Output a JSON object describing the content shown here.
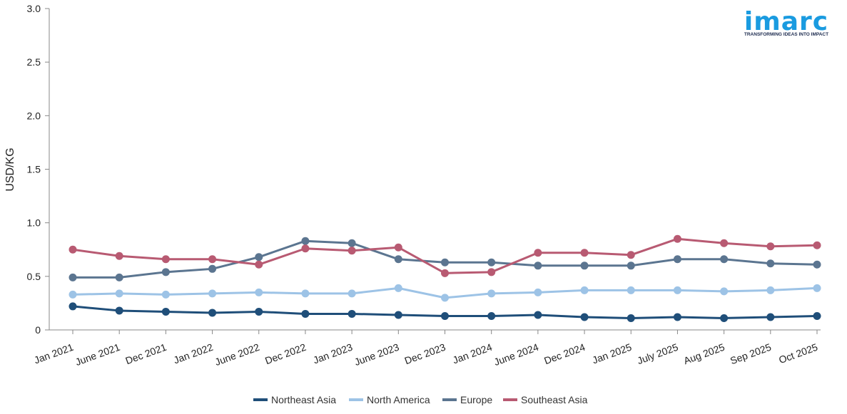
{
  "brand": {
    "name": "imarc",
    "tagline": "TRANSFORMING IDEAS INTO IMPACT",
    "color": "#1a9be0",
    "tagline_color": "#1d2b4f"
  },
  "chart_data": {
    "type": "line",
    "title": "",
    "xlabel": "",
    "ylabel": "USD/KG",
    "ylim": [
      0,
      3.0
    ],
    "yticks": [
      0,
      0.5,
      1.0,
      1.5,
      2.0,
      2.5,
      3.0
    ],
    "ytick_labels": [
      "0",
      "0.5",
      "1.0",
      "1.5",
      "2.0",
      "2.5",
      "3.0"
    ],
    "grid": false,
    "legend": "bottom-center",
    "categories": [
      "Jan 2021",
      "June 2021",
      "Dec 2021",
      "Jan 2022",
      "June 2022",
      "Dec 2022",
      "Jan 2023",
      "June 2023",
      "Dec 2023",
      "Jan 2024",
      "June 2024",
      "Dec 2024",
      "Jan 2025",
      "July 2025",
      "Aug 2025",
      "Sep 2025",
      "Oct 2025"
    ],
    "series": [
      {
        "name": "Northeast Asia",
        "color": "#1f4e79",
        "values": [
          0.22,
          0.18,
          0.17,
          0.16,
          0.17,
          0.15,
          0.15,
          0.14,
          0.13,
          0.13,
          0.14,
          0.12,
          0.11,
          0.12,
          0.11,
          0.12,
          0.13
        ]
      },
      {
        "name": "North America",
        "color": "#9dc3e6",
        "values": [
          0.33,
          0.34,
          0.33,
          0.34,
          0.35,
          0.34,
          0.34,
          0.39,
          0.3,
          0.34,
          0.35,
          0.37,
          0.37,
          0.37,
          0.36,
          0.37,
          0.39
        ]
      },
      {
        "name": "Europe",
        "color": "#5b7590",
        "values": [
          0.49,
          0.49,
          0.54,
          0.57,
          0.68,
          0.83,
          0.81,
          0.66,
          0.63,
          0.63,
          0.6,
          0.6,
          0.6,
          0.66,
          0.66,
          0.62,
          0.61
        ]
      },
      {
        "name": "Southeast Asia",
        "color": "#b85a72",
        "values": [
          0.75,
          0.69,
          0.66,
          0.66,
          0.61,
          0.76,
          0.74,
          0.77,
          0.53,
          0.54,
          0.72,
          0.72,
          0.7,
          0.85,
          0.81,
          0.78,
          0.79
        ]
      }
    ]
  }
}
